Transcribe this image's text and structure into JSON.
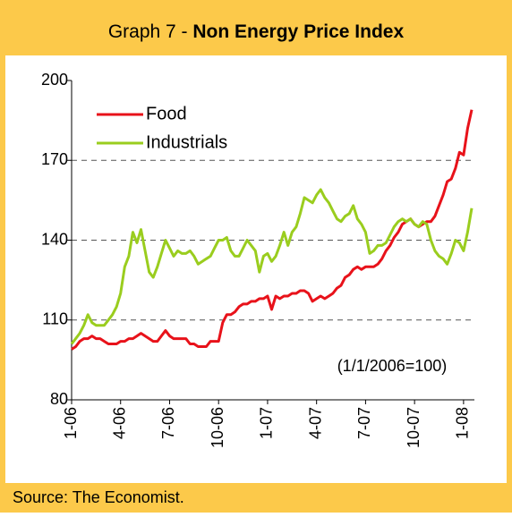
{
  "chart_data": {
    "type": "line",
    "title": [
      "Graph 7 - ",
      "Non Energy Price Index"
    ],
    "annotation": "(1/1/2006=100)",
    "source": "Source: The Economist.",
    "categories": [
      "1-06",
      null,
      null,
      null,
      null,
      null,
      null,
      null,
      null,
      null,
      null,
      null,
      "4-06",
      null,
      null,
      null,
      null,
      null,
      null,
      null,
      null,
      null,
      null,
      null,
      "7-06",
      null,
      null,
      null,
      null,
      null,
      null,
      null,
      null,
      null,
      null,
      null,
      "10-06",
      null,
      null,
      null,
      null,
      null,
      null,
      null,
      null,
      null,
      null,
      null,
      "1-07",
      null,
      null,
      null,
      null,
      null,
      null,
      null,
      null,
      null,
      null,
      null,
      "4-07",
      null,
      null,
      null,
      null,
      null,
      null,
      null,
      null,
      null,
      null,
      null,
      "7-07",
      null,
      null,
      null,
      null,
      null,
      null,
      null,
      null,
      null,
      null,
      null,
      "10-07",
      null,
      null,
      null,
      null,
      null,
      null,
      null,
      null,
      null,
      null,
      null,
      "1-08",
      null,
      null
    ],
    "series": [
      {
        "name": "Food",
        "color": "#e8121a",
        "values": [
          99,
          100,
          102,
          103,
          103,
          104,
          103,
          103,
          102,
          101,
          101,
          101,
          102,
          102,
          103,
          103,
          104,
          105,
          104,
          103,
          102,
          102,
          104,
          106,
          104,
          103,
          103,
          103,
          103,
          101,
          101,
          100,
          100,
          100,
          102,
          102,
          102,
          109,
          112,
          112,
          113,
          115,
          116,
          116,
          117,
          117,
          118,
          118,
          119,
          114,
          119,
          118,
          119,
          119,
          120,
          120,
          121,
          121,
          120,
          117,
          118,
          119,
          118,
          119,
          120,
          122,
          123,
          126,
          127,
          129,
          130,
          129,
          130,
          130,
          130,
          131,
          133,
          136,
          138,
          141,
          143,
          146,
          147,
          148,
          146,
          145,
          146,
          147,
          147,
          149,
          153,
          157,
          162,
          163,
          167,
          173,
          172,
          182,
          189
        ]
      },
      {
        "name": "Industrials",
        "color": "#9acd1e",
        "values": [
          101,
          103,
          105,
          108,
          112,
          109,
          108,
          108,
          108,
          110,
          112,
          115,
          120,
          130,
          134,
          143,
          139,
          144,
          136,
          128,
          126,
          130,
          135,
          140,
          137,
          134,
          136,
          135,
          135,
          136,
          134,
          131,
          132,
          133,
          134,
          137,
          140,
          140,
          141,
          136,
          134,
          134,
          137,
          140,
          138,
          136,
          128,
          134,
          135,
          132,
          134,
          138,
          143,
          138,
          143,
          145,
          150,
          156,
          155,
          154,
          157,
          159,
          156,
          154,
          151,
          148,
          147,
          149,
          150,
          153,
          148,
          146,
          143,
          135,
          136,
          138,
          138,
          139,
          142,
          145,
          147,
          148,
          147,
          148,
          146,
          145,
          147,
          146,
          140,
          136,
          134,
          133,
          131,
          135,
          140,
          139,
          136,
          143,
          152
        ]
      }
    ],
    "ylim": [
      80,
      200
    ],
    "yticks": [
      80,
      110,
      140,
      170,
      200
    ],
    "grid": true
  }
}
